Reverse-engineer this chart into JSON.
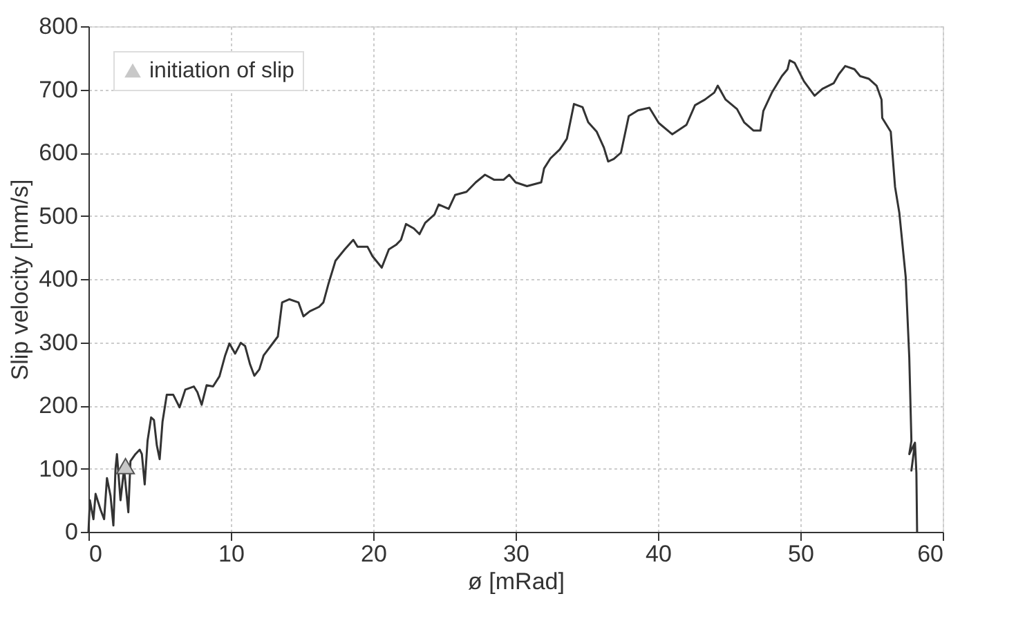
{
  "chart_data": {
    "type": "line",
    "xlabel": "ø [mRad]",
    "ylabel": "Slip velocity [mm/s]",
    "xlim": [
      0,
      60
    ],
    "xticks": [
      0,
      10,
      20,
      30,
      40,
      50,
      60
    ],
    "ylim": [
      0,
      800
    ],
    "yticks": [
      0,
      100,
      200,
      300,
      400,
      500,
      600,
      700,
      800
    ],
    "grid": true,
    "legend": "top left",
    "line_style": "solid",
    "series": [
      {
        "color": "#333333",
        "marker": "none",
        "x": [
          0,
          0.1,
          0.35,
          0.5,
          0.85,
          1.1,
          1.3,
          1.55,
          1.75,
          1.9,
          2.0,
          2.25,
          2.5,
          2.8,
          2.95,
          3.3,
          3.6,
          3.75,
          3.95,
          4.15,
          4.4,
          4.6,
          4.8,
          5.0,
          5.2,
          5.5,
          5.95,
          6.4,
          6.8,
          7.4,
          7.65,
          7.95,
          8.3,
          8.75,
          9.2,
          9.6,
          9.9,
          10.3,
          10.7,
          11.0,
          11.35,
          11.65,
          12.0,
          12.3,
          12.8,
          13.3,
          13.6,
          14.1,
          14.75,
          15.1,
          15.55,
          16.2,
          16.5,
          16.85,
          17.35,
          18.0,
          18.6,
          18.9,
          19.6,
          19.95,
          20.6,
          21.1,
          21.6,
          21.95,
          22.3,
          22.85,
          23.25,
          23.65,
          24.3,
          24.6,
          25.3,
          25.75,
          26.55,
          27.2,
          27.85,
          28.5,
          29.15,
          29.55,
          30.0,
          30.8,
          31.8,
          32.0,
          32.45,
          33.1,
          33.6,
          34.1,
          34.7,
          35.1,
          35.7,
          36.2,
          36.5,
          36.9,
          37.4,
          37.95,
          38.6,
          39.4,
          40.05,
          41.0,
          42.0,
          42.6,
          43.3,
          43.95,
          44.2,
          44.75,
          45.55,
          46.05,
          46.7,
          47.2,
          47.4,
          48.0,
          48.7,
          49.1,
          49.25,
          49.6,
          50.25,
          51.0,
          51.55,
          52.35,
          52.7,
          53.15,
          53.8,
          54.2,
          54.8,
          55.35,
          55.7,
          55.75,
          56.35,
          56.65,
          56.95,
          57.4,
          57.65,
          57.8,
          57.65,
          58.05,
          57.8,
          58.05,
          58.15,
          58.2
        ],
        "values": [
          0,
          50,
          20,
          60,
          35,
          20,
          85,
          57,
          10,
          100,
          123,
          50,
          100,
          31,
          112,
          123,
          130,
          123,
          75,
          144,
          181,
          177,
          137,
          115,
          174,
          217,
          217,
          197,
          225,
          230,
          221,
          201,
          232,
          230,
          246,
          279,
          298,
          282,
          299,
          294,
          265,
          247,
          257,
          279,
          294,
          309,
          363,
          368,
          363,
          341,
          349,
          356,
          363,
          392,
          429,
          447,
          462,
          451,
          451,
          436,
          418,
          447,
          454,
          462,
          487,
          480,
          471,
          489,
          502,
          518,
          511,
          533,
          538,
          553,
          565,
          557,
          557,
          565,
          553,
          547,
          553,
          575,
          591,
          605,
          622,
          677,
          672,
          648,
          633,
          608,
          586,
          590,
          600,
          658,
          667,
          671,
          647,
          629,
          644,
          675,
          684,
          695,
          706,
          684,
          669,
          648,
          635,
          635,
          666,
          695,
          721,
          732,
          746,
          742,
          713,
          690,
          701,
          710,
          724,
          737,
          732,
          721,
          717,
          706,
          684,
          655,
          633,
          546,
          505,
          403,
          276,
          144,
          123,
          141,
          97,
          141,
          93,
          0
        ]
      },
      {
        "type": "scatter",
        "name": "initiation of slip",
        "color": "#c8c8c8",
        "marker": "triangle",
        "x": [
          2.6
        ],
        "values": [
          104
        ]
      }
    ]
  }
}
